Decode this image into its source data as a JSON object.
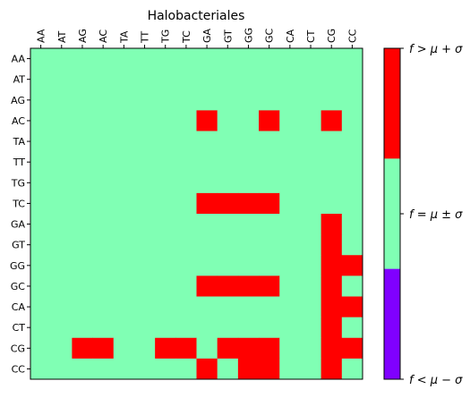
{
  "chart_data": {
    "type": "heatmap",
    "title": "Halobacteriales",
    "xlabel": "",
    "ylabel": "",
    "x_categories": [
      "AA",
      "AT",
      "AG",
      "AC",
      "TA",
      "TT",
      "TG",
      "TC",
      "GA",
      "GT",
      "GG",
      "GC",
      "CA",
      "CT",
      "CG",
      "CC"
    ],
    "y_categories": [
      "AA",
      "AT",
      "AG",
      "AC",
      "TA",
      "TT",
      "TG",
      "TC",
      "GA",
      "GT",
      "GG",
      "GC",
      "CA",
      "CT",
      "CG",
      "CC"
    ],
    "value_encoding": {
      "1": "high",
      "0": "mid",
      "-1": "low"
    },
    "values": [
      [
        0,
        0,
        0,
        0,
        0,
        0,
        0,
        0,
        0,
        0,
        0,
        0,
        0,
        0,
        0,
        0
      ],
      [
        0,
        0,
        0,
        0,
        0,
        0,
        0,
        0,
        0,
        0,
        0,
        0,
        0,
        0,
        0,
        0
      ],
      [
        0,
        0,
        0,
        0,
        0,
        0,
        0,
        0,
        0,
        0,
        0,
        0,
        0,
        0,
        0,
        0
      ],
      [
        0,
        0,
        0,
        0,
        0,
        0,
        0,
        0,
        1,
        0,
        0,
        1,
        0,
        0,
        1,
        0
      ],
      [
        0,
        0,
        0,
        0,
        0,
        0,
        0,
        0,
        0,
        0,
        0,
        0,
        0,
        0,
        0,
        0
      ],
      [
        0,
        0,
        0,
        0,
        0,
        0,
        0,
        0,
        0,
        0,
        0,
        0,
        0,
        0,
        0,
        0
      ],
      [
        0,
        0,
        0,
        0,
        0,
        0,
        0,
        0,
        0,
        0,
        0,
        0,
        0,
        0,
        0,
        0
      ],
      [
        0,
        0,
        0,
        0,
        0,
        0,
        0,
        0,
        1,
        1,
        1,
        1,
        0,
        0,
        0,
        0
      ],
      [
        0,
        0,
        0,
        0,
        0,
        0,
        0,
        0,
        0,
        0,
        0,
        0,
        0,
        0,
        1,
        0
      ],
      [
        0,
        0,
        0,
        0,
        0,
        0,
        0,
        0,
        0,
        0,
        0,
        0,
        0,
        0,
        1,
        0
      ],
      [
        0,
        0,
        0,
        0,
        0,
        0,
        0,
        0,
        0,
        0,
        0,
        0,
        0,
        0,
        1,
        1
      ],
      [
        0,
        0,
        0,
        0,
        0,
        0,
        0,
        0,
        1,
        1,
        1,
        1,
        0,
        0,
        1,
        0
      ],
      [
        0,
        0,
        0,
        0,
        0,
        0,
        0,
        0,
        0,
        0,
        0,
        0,
        0,
        0,
        1,
        1
      ],
      [
        0,
        0,
        0,
        0,
        0,
        0,
        0,
        0,
        0,
        0,
        0,
        0,
        0,
        0,
        1,
        0
      ],
      [
        0,
        0,
        1,
        1,
        0,
        0,
        1,
        1,
        0,
        1,
        1,
        1,
        0,
        0,
        1,
        1
      ],
      [
        0,
        0,
        0,
        0,
        0,
        0,
        0,
        0,
        1,
        0,
        1,
        1,
        0,
        0,
        1,
        0
      ]
    ],
    "colorbar": {
      "categories": [
        {
          "key": "high",
          "label": "f > μ + σ",
          "color": "#ff0000"
        },
        {
          "key": "mid",
          "label": "f = μ ± σ",
          "color": "#80ffb4"
        },
        {
          "key": "low",
          "label": "f < μ − σ",
          "color": "#8000ff"
        }
      ]
    },
    "grid": false,
    "legend_position": "right"
  }
}
